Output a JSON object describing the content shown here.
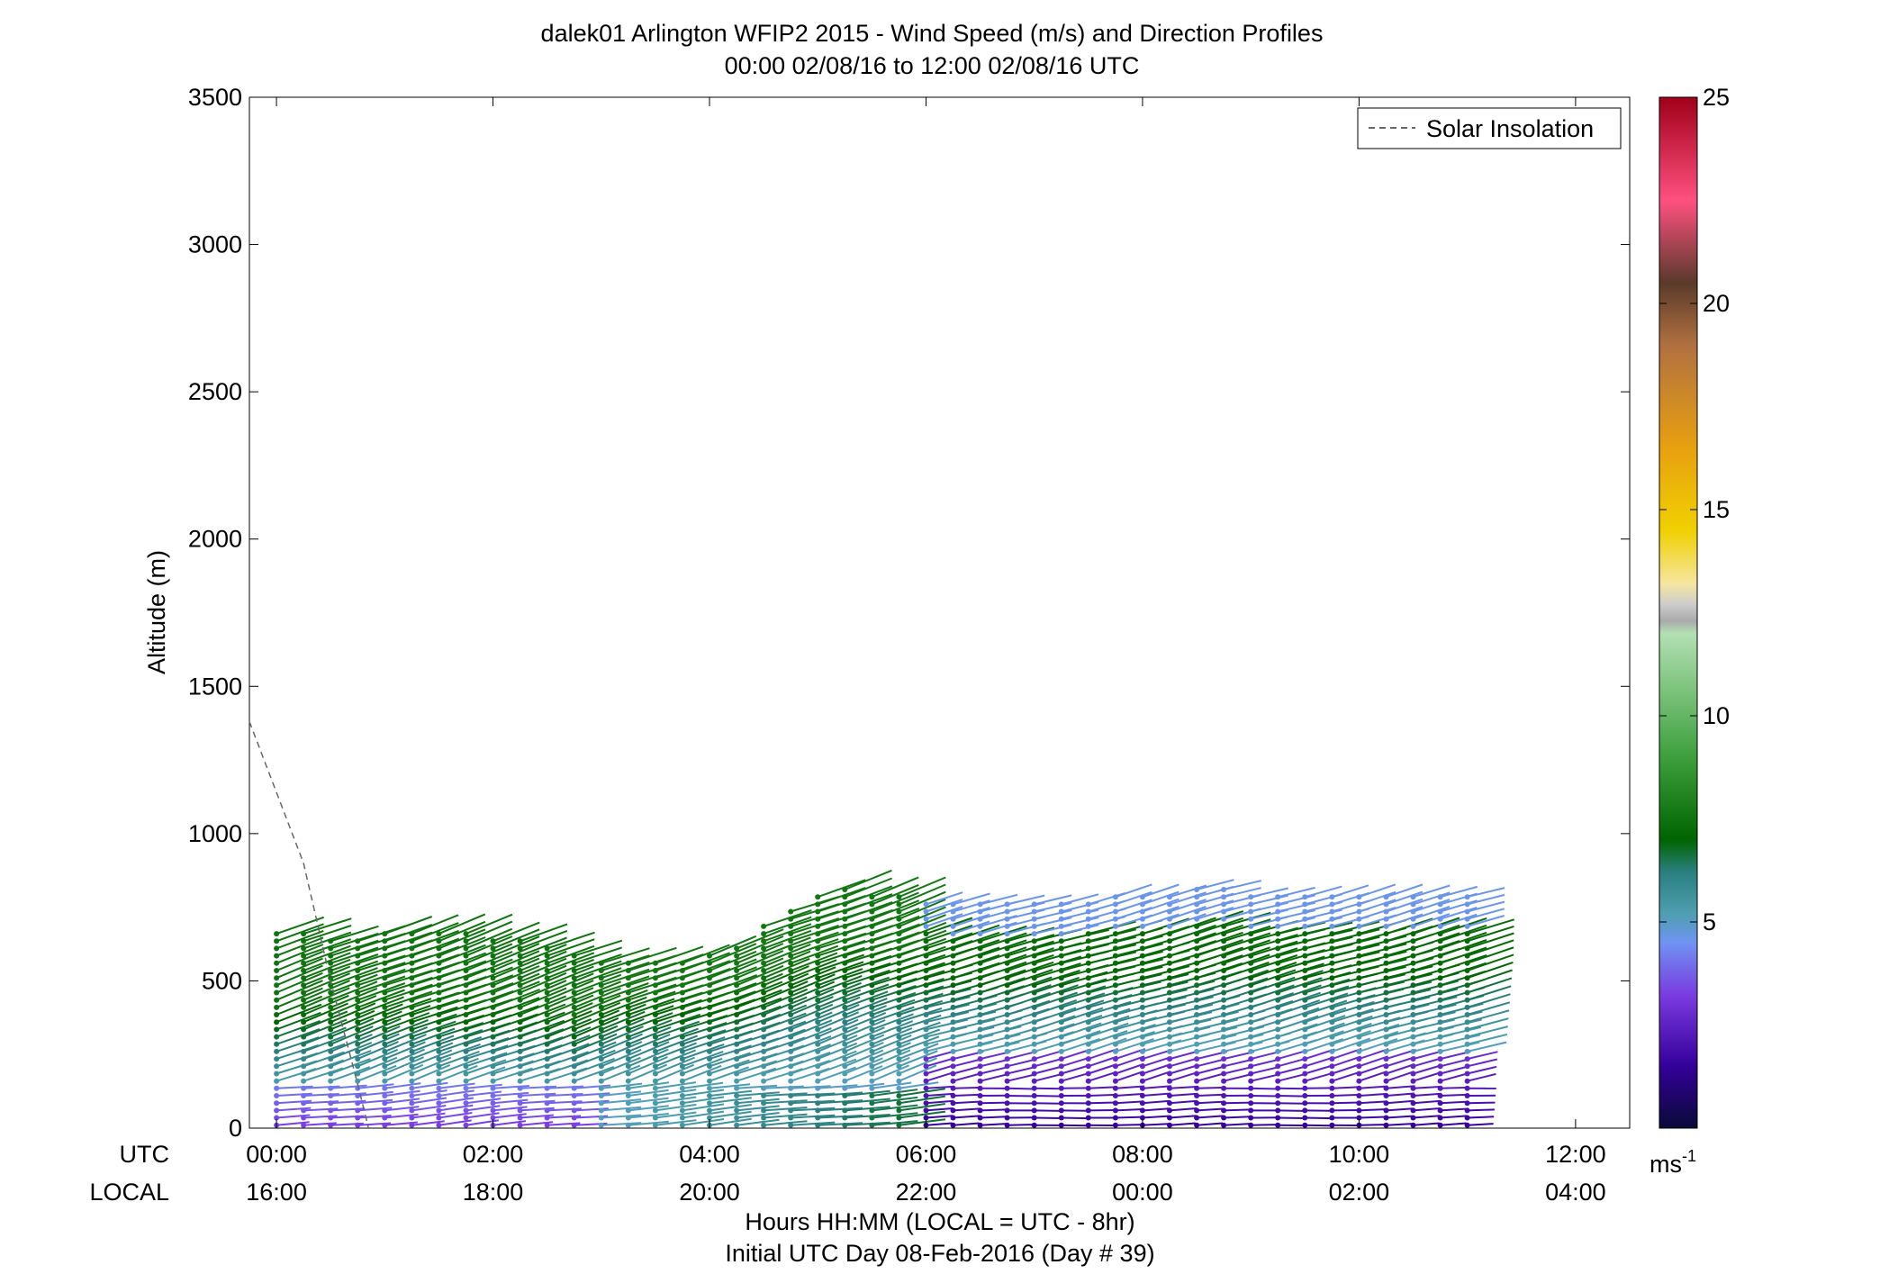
{
  "chart_data": {
    "type": "scatter",
    "title": "dalek01 Arlington WFIP2 2015 - Wind Speed (m/s) and Direction Profiles",
    "subtitle": "00:00 02/08/16 to 12:00 02/08/16  UTC",
    "ylabel": "Altitude (m)",
    "xlabel": "Hours HH:MM  (LOCAL = UTC - 8hr)",
    "xlabel2": "Initial UTC Day 08-Feb-2016 (Day # 39)",
    "row_label_utc": "UTC",
    "row_label_local": "LOCAL",
    "ylim": [
      0,
      3500
    ],
    "yticks": [
      0,
      500,
      1000,
      1500,
      2000,
      2500,
      3000,
      3500
    ],
    "xlim_hours": [
      -0.25,
      12.5
    ],
    "xticks_hours": [
      0,
      2,
      4,
      6,
      8,
      10,
      12
    ],
    "xtick_utc": [
      "00:00",
      "02:00",
      "04:00",
      "06:00",
      "08:00",
      "10:00",
      "12:00"
    ],
    "xtick_local": [
      "16:00",
      "18:00",
      "20:00",
      "22:00",
      "00:00",
      "02:00",
      "04:00"
    ],
    "legend": {
      "label": "Solar Insolation",
      "position": "top-right",
      "style": "dashed",
      "color": "#666666"
    },
    "colorbar": {
      "range": [
        0,
        25
      ],
      "ticks": [
        5,
        10,
        15,
        20,
        25
      ],
      "unit": "ms",
      "unit_exp": "-1",
      "stops": [
        {
          "v": 0,
          "c": "#0a0a38"
        },
        {
          "v": 1.5,
          "c": "#330099"
        },
        {
          "v": 3.2,
          "c": "#7a3ae0"
        },
        {
          "v": 4.5,
          "c": "#6f93f2"
        },
        {
          "v": 5.2,
          "c": "#4f9fb0"
        },
        {
          "v": 6.2,
          "c": "#2a8080"
        },
        {
          "v": 7.0,
          "c": "#006400"
        },
        {
          "v": 9.0,
          "c": "#3da03d"
        },
        {
          "v": 12.0,
          "c": "#b2e0b2"
        },
        {
          "v": 12.3,
          "c": "#aaaaaa"
        },
        {
          "v": 12.7,
          "c": "#cccccc"
        },
        {
          "v": 13.2,
          "c": "#f5e6a0"
        },
        {
          "v": 14.5,
          "c": "#f0d000"
        },
        {
          "v": 16.5,
          "c": "#e8a010"
        },
        {
          "v": 19.0,
          "c": "#b07040"
        },
        {
          "v": 20.5,
          "c": "#5a3a2a"
        },
        {
          "v": 22.5,
          "c": "#ff5080"
        },
        {
          "v": 25,
          "c": "#a00018"
        }
      ]
    },
    "solar_insolation_line": {
      "x_hours": [
        -0.25,
        0.25,
        0.5,
        0.75,
        0.85
      ],
      "y": [
        1380,
        900,
        500,
        150,
        0
      ]
    },
    "profiles": {
      "time_start_hours": 0,
      "time_step_hours": 0.25,
      "count": 45,
      "gate_spacing_m": 25,
      "max_altitude_m": [
        665,
        665,
        650,
        650,
        660,
        665,
        660,
        660,
        655,
        640,
        610,
        590,
        580,
        570,
        575,
        580,
        600,
        630,
        700,
        740,
        790,
        810,
        800,
        790,
        780,
        770,
        770,
        770,
        770,
        770,
        780,
        790,
        800,
        800,
        820,
        820,
        800,
        800,
        800,
        800,
        800,
        800,
        800,
        800,
        800
      ],
      "direction_note": "line segments point in wind direction from gate marker; length scales with speed"
    }
  }
}
